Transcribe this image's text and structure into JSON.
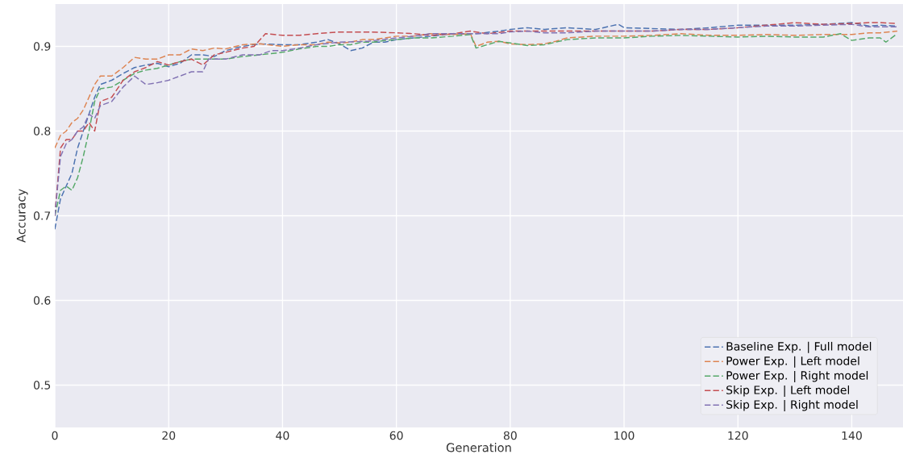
{
  "chart_data": {
    "type": "line",
    "xlabel": "Generation",
    "ylabel": "Accuracy",
    "xlim": [
      0,
      149
    ],
    "ylim": [
      0.45,
      0.95
    ],
    "xticks": [
      0,
      20,
      40,
      60,
      80,
      100,
      120,
      140
    ],
    "yticks": [
      0.5,
      0.6,
      0.7,
      0.8,
      0.9
    ],
    "grid": true,
    "legend": "bottom right",
    "line_style": "dashed",
    "series": [
      {
        "name": "Baseline Exp. | Full model",
        "color": "#4c72b0",
        "x": [
          0,
          1,
          2,
          3,
          4,
          5,
          6,
          7,
          8,
          10,
          12,
          14,
          16,
          18,
          20,
          22,
          24,
          26,
          28,
          30,
          33,
          36,
          40,
          43,
          46,
          48,
          50,
          52,
          54,
          56,
          58,
          60,
          63,
          66,
          70,
          74,
          78,
          80,
          83,
          86,
          90,
          95,
          99,
          100,
          105,
          110,
          115,
          120,
          125,
          130,
          135,
          140,
          143,
          145,
          148
        ],
        "values": [
          0.684,
          0.72,
          0.735,
          0.75,
          0.78,
          0.8,
          0.82,
          0.84,
          0.855,
          0.86,
          0.868,
          0.875,
          0.878,
          0.88,
          0.876,
          0.88,
          0.89,
          0.89,
          0.888,
          0.895,
          0.9,
          0.903,
          0.902,
          0.902,
          0.905,
          0.908,
          0.903,
          0.895,
          0.898,
          0.905,
          0.905,
          0.908,
          0.91,
          0.912,
          0.915,
          0.915,
          0.918,
          0.92,
          0.922,
          0.92,
          0.922,
          0.92,
          0.926,
          0.922,
          0.921,
          0.92,
          0.922,
          0.925,
          0.925,
          0.925,
          0.926,
          0.928,
          0.924,
          0.925,
          0.924
        ]
      },
      {
        "name": "Power Exp. | Left model",
        "color": "#dd8452",
        "x": [
          0,
          1,
          2,
          3,
          4,
          5,
          6,
          7,
          8,
          10,
          12,
          14,
          16,
          18,
          20,
          22,
          24,
          26,
          28,
          30,
          33,
          36,
          40,
          43,
          46,
          48,
          50,
          52,
          54,
          56,
          58,
          60,
          63,
          66,
          70,
          73,
          74,
          76,
          78,
          80,
          83,
          86,
          88,
          90,
          95,
          100,
          105,
          110,
          115,
          120,
          125,
          130,
          135,
          140,
          143,
          145,
          148
        ],
        "values": [
          0.78,
          0.795,
          0.8,
          0.81,
          0.815,
          0.825,
          0.84,
          0.855,
          0.865,
          0.865,
          0.875,
          0.887,
          0.885,
          0.885,
          0.89,
          0.89,
          0.897,
          0.895,
          0.898,
          0.897,
          0.902,
          0.903,
          0.9,
          0.902,
          0.902,
          0.905,
          0.904,
          0.905,
          0.908,
          0.908,
          0.91,
          0.912,
          0.912,
          0.915,
          0.914,
          0.915,
          0.9,
          0.905,
          0.906,
          0.903,
          0.902,
          0.903,
          0.906,
          0.91,
          0.912,
          0.912,
          0.913,
          0.915,
          0.913,
          0.913,
          0.914,
          0.913,
          0.914,
          0.914,
          0.916,
          0.916,
          0.918
        ]
      },
      {
        "name": "Power Exp. | Right model",
        "color": "#55a868",
        "x": [
          0,
          1,
          2,
          3,
          4,
          5,
          6,
          7,
          8,
          10,
          12,
          14,
          16,
          18,
          20,
          22,
          24,
          26,
          28,
          30,
          33,
          36,
          40,
          43,
          46,
          48,
          50,
          52,
          54,
          56,
          58,
          60,
          63,
          66,
          70,
          73,
          74,
          76,
          78,
          80,
          83,
          86,
          88,
          90,
          95,
          100,
          105,
          110,
          115,
          120,
          125,
          130,
          135,
          138,
          140,
          143,
          145,
          146,
          148
        ],
        "values": [
          0.7,
          0.73,
          0.735,
          0.73,
          0.745,
          0.77,
          0.8,
          0.835,
          0.85,
          0.852,
          0.86,
          0.868,
          0.872,
          0.874,
          0.878,
          0.882,
          0.885,
          0.885,
          0.885,
          0.885,
          0.888,
          0.89,
          0.893,
          0.897,
          0.9,
          0.9,
          0.902,
          0.902,
          0.905,
          0.905,
          0.907,
          0.908,
          0.91,
          0.91,
          0.912,
          0.914,
          0.898,
          0.902,
          0.906,
          0.904,
          0.901,
          0.902,
          0.905,
          0.908,
          0.91,
          0.91,
          0.912,
          0.913,
          0.912,
          0.911,
          0.912,
          0.911,
          0.911,
          0.915,
          0.907,
          0.91,
          0.91,
          0.905,
          0.915
        ]
      },
      {
        "name": "Skip Exp. | Left model",
        "color": "#c44e52",
        "x": [
          0,
          1,
          2,
          3,
          4,
          5,
          6,
          7,
          8,
          10,
          12,
          14,
          16,
          18,
          20,
          22,
          24,
          26,
          28,
          30,
          33,
          35,
          37,
          40,
          43,
          46,
          50,
          55,
          60,
          63,
          66,
          70,
          73,
          76,
          80,
          83,
          86,
          90,
          95,
          100,
          105,
          110,
          115,
          120,
          125,
          130,
          135,
          140,
          143,
          145,
          148
        ],
        "values": [
          0.7,
          0.78,
          0.79,
          0.79,
          0.8,
          0.8,
          0.81,
          0.8,
          0.835,
          0.84,
          0.86,
          0.87,
          0.875,
          0.882,
          0.878,
          0.882,
          0.885,
          0.878,
          0.89,
          0.893,
          0.898,
          0.9,
          0.915,
          0.913,
          0.913,
          0.915,
          0.917,
          0.917,
          0.916,
          0.915,
          0.913,
          0.915,
          0.918,
          0.915,
          0.918,
          0.918,
          0.918,
          0.918,
          0.918,
          0.918,
          0.918,
          0.92,
          0.92,
          0.922,
          0.925,
          0.928,
          0.926,
          0.927,
          0.928,
          0.928,
          0.927
        ]
      },
      {
        "name": "Skip Exp. | Right model",
        "color": "#8172b3",
        "x": [
          0,
          1,
          2,
          3,
          4,
          5,
          6,
          7,
          8,
          10,
          12,
          14,
          16,
          18,
          20,
          22,
          24,
          26,
          27,
          30,
          33,
          36,
          38,
          40,
          43,
          46,
          50,
          55,
          60,
          63,
          66,
          70,
          74,
          78,
          80,
          83,
          86,
          90,
          95,
          100,
          105,
          110,
          115,
          120,
          125,
          130,
          135,
          140,
          143,
          145,
          148
        ],
        "values": [
          0.7,
          0.77,
          0.785,
          0.79,
          0.8,
          0.805,
          0.82,
          0.815,
          0.83,
          0.835,
          0.852,
          0.865,
          0.855,
          0.857,
          0.86,
          0.865,
          0.87,
          0.87,
          0.885,
          0.885,
          0.89,
          0.89,
          0.895,
          0.895,
          0.898,
          0.902,
          0.905,
          0.906,
          0.91,
          0.912,
          0.915,
          0.915,
          0.915,
          0.915,
          0.917,
          0.918,
          0.916,
          0.916,
          0.918,
          0.918,
          0.918,
          0.92,
          0.92,
          0.922,
          0.924,
          0.924,
          0.925,
          0.926,
          0.923,
          0.923,
          0.923
        ]
      }
    ]
  }
}
